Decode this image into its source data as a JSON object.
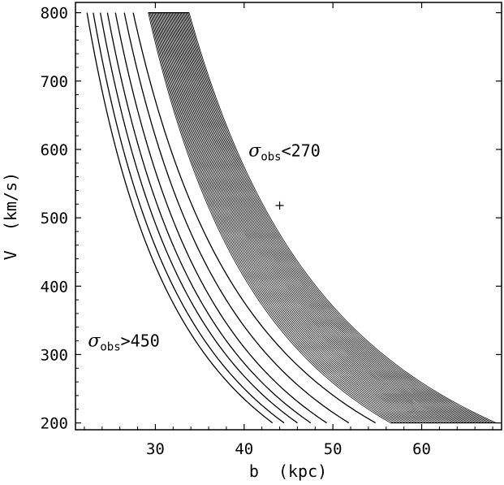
{
  "chart_data": {
    "type": "line",
    "xlabel": "b  (kpc)",
    "ylabel": "V  (km/s)",
    "xlim": [
      21,
      69
    ],
    "ylim": [
      190,
      815
    ],
    "x_ticks": [
      30,
      40,
      50,
      60
    ],
    "y_ticks": [
      200,
      300,
      400,
      500,
      600,
      700,
      800
    ],
    "grid": false,
    "legend": "none",
    "line_color": "#000000",
    "curve_model": "V = V_top * (b_top / b)^p, from V=800 to V=200",
    "series": [
      {
        "b_at_800": 22.3,
        "b_at_200": 43.2
      },
      {
        "b_at_800": 23.0,
        "b_at_200": 44.5
      },
      {
        "b_at_800": 23.8,
        "b_at_200": 46.0
      },
      {
        "b_at_800": 24.6,
        "b_at_200": 47.5
      },
      {
        "b_at_800": 25.5,
        "b_at_200": 49.3
      },
      {
        "b_at_800": 26.5,
        "b_at_200": 51.8
      },
      {
        "b_at_800": 27.5,
        "b_at_200": 54.8
      }
    ],
    "shaded_band": {
      "fill_style": "dense-hatch",
      "line_count": 36,
      "inner_boundary": {
        "b_at_800": 29.2,
        "b_at_200": 56.5
      },
      "outer_boundary": {
        "b_at_800": 33.8,
        "b_at_200": 68.4
      }
    },
    "marker": {
      "type": "plus",
      "b": 44.0,
      "v": 518
    },
    "annotations": [
      {
        "sigma": "σ",
        "sub": "obs",
        "text": "<270",
        "b": 40.5,
        "v": 590
      },
      {
        "sigma": "σ",
        "sub": "obs",
        "text": ">450",
        "b": 22.4,
        "v": 312
      }
    ]
  }
}
